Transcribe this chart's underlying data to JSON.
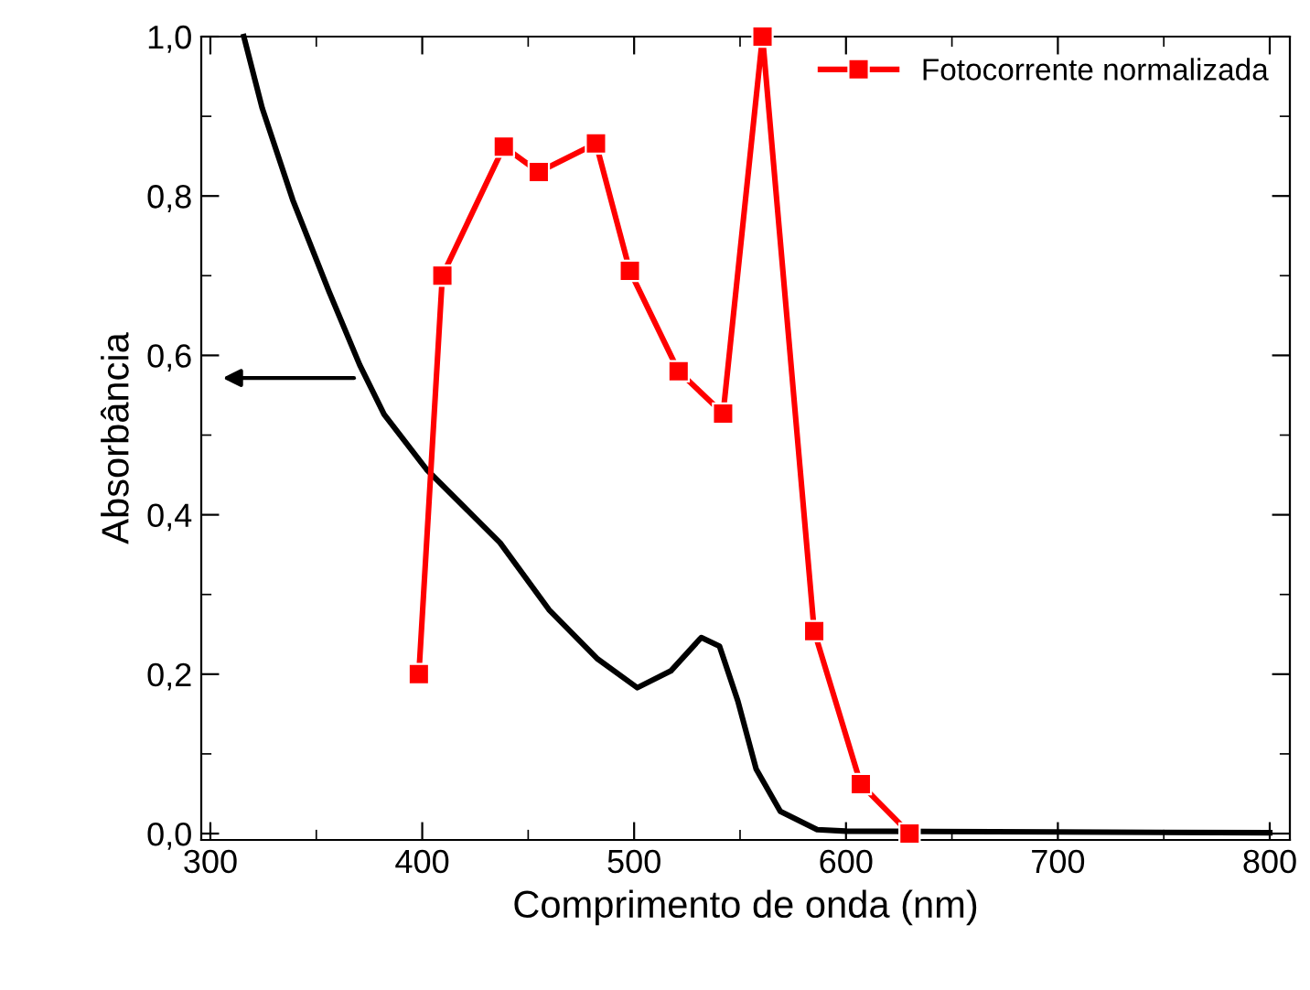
{
  "chart_data": {
    "type": "line",
    "xlabel": "Comprimento de onda (nm)",
    "ylabel": "Absorbância",
    "xlim": [
      295.7,
      809.5
    ],
    "ylim": [
      -0.008,
      1.0
    ],
    "xticks": [
      300,
      400,
      500,
      600,
      700,
      800
    ],
    "yticks": [
      {
        "value": 0,
        "label": "0,0"
      },
      {
        "value": 0.2,
        "label": "0,2"
      },
      {
        "value": 0.4,
        "label": "0,4"
      },
      {
        "value": 0.6,
        "label": "0,6"
      },
      {
        "value": 0.8,
        "label": "0,8"
      },
      {
        "value": 1.0,
        "label": "1,0"
      }
    ],
    "grid": false,
    "legend": "top right",
    "series": [
      {
        "color": "#000000",
        "marker": "none",
        "x": [
          315.8,
          324.5,
          338.9,
          356,
          370.5,
          382,
          402,
          425,
          436.7,
          459.8,
          482.8,
          501.5,
          517.3,
          531.7,
          540.3,
          549,
          557.6,
          569,
          586.4,
          600,
          700,
          800
        ],
        "values": [
          1.0,
          0.91,
          0.795,
          0.68,
          0.588,
          0.526,
          0.457,
          0.396,
          0.365,
          0.281,
          0.219,
          0.183,
          0.204,
          0.246,
          0.235,
          0.166,
          0.081,
          0.028,
          0.005,
          0.003,
          0.002,
          0.001
        ]
      },
      {
        "name": "Fotocorrente normalizada",
        "color": "#ff0000",
        "marker": "square",
        "x": [
          398.4,
          409.5,
          438.5,
          455,
          482,
          498,
          521,
          542,
          560.6,
          585,
          607,
          630
        ],
        "values": [
          0.2,
          0.7,
          0.862,
          0.83,
          0.866,
          0.706,
          0.58,
          0.527,
          1.0,
          0.254,
          0.062,
          0.0
        ]
      }
    ]
  }
}
